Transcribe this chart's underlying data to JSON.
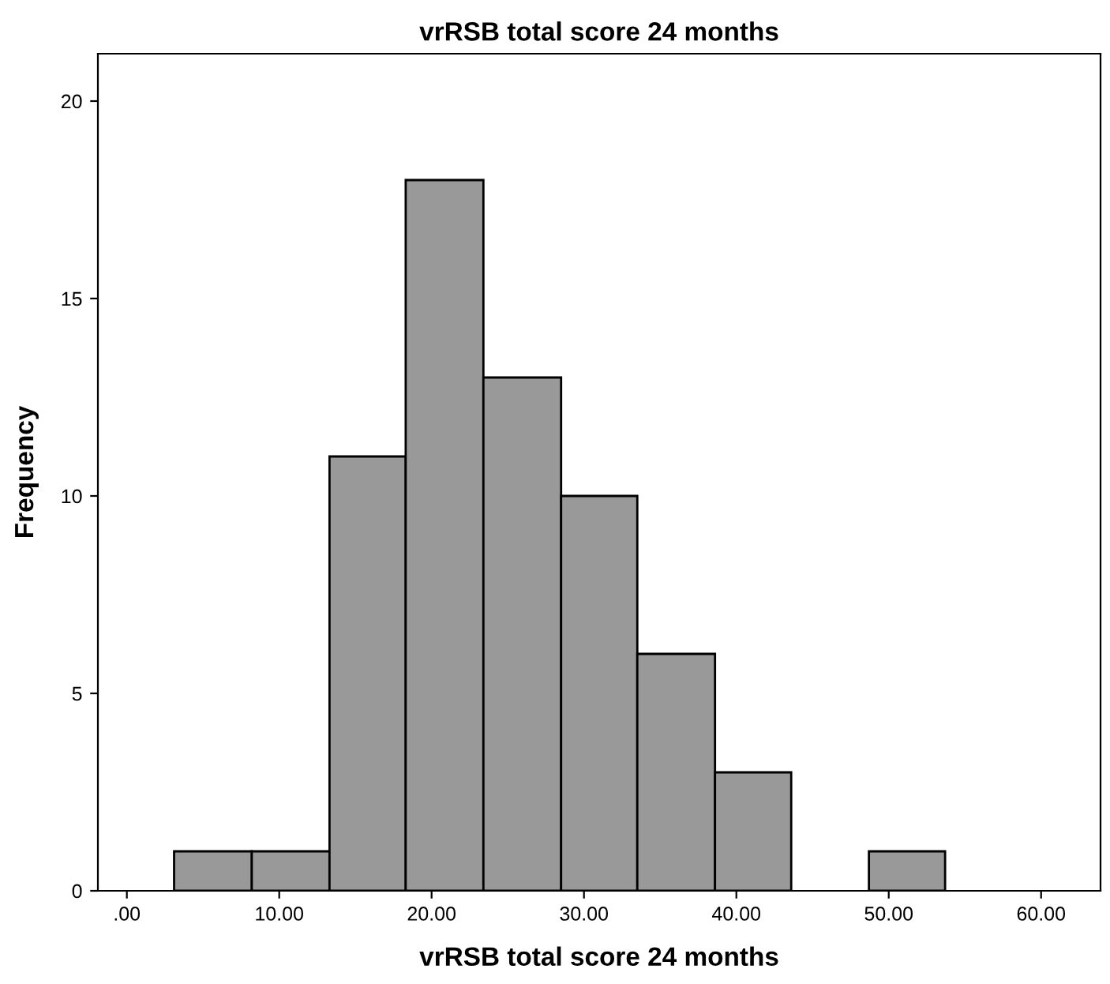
{
  "chart_data": {
    "type": "histogram",
    "title": "vrRSB total score 24 months",
    "xlabel": "vrRSB total score 24 months",
    "ylabel": "Frequency",
    "bins": [
      3.1,
      8.2,
      13.3,
      18.3,
      23.4,
      28.5,
      33.5,
      38.6,
      43.6,
      48.7,
      53.7
    ],
    "values": [
      1,
      1,
      11,
      18,
      13,
      10,
      6,
      3,
      0,
      1
    ],
    "color": "#999999",
    "xlim": [
      -1.9,
      63.9
    ],
    "xticks": [
      {
        "value": 0,
        "label": ".00"
      },
      {
        "value": 10,
        "label": "10.00"
      },
      {
        "value": 20,
        "label": "20.00"
      },
      {
        "value": 30,
        "label": "30.00"
      },
      {
        "value": 40,
        "label": "40.00"
      },
      {
        "value": 50,
        "label": "50.00"
      },
      {
        "value": 60,
        "label": "60.00"
      }
    ],
    "ylim": [
      0,
      21.2
    ],
    "yticks": [
      0,
      5,
      10,
      15,
      20
    ],
    "grid": false
  }
}
